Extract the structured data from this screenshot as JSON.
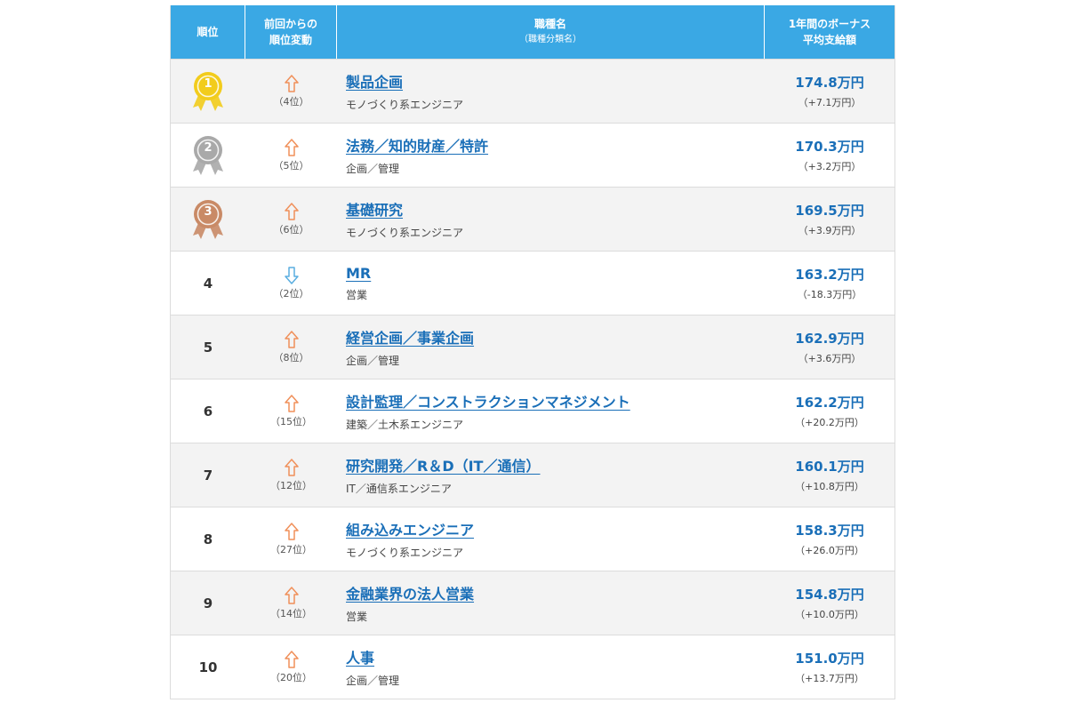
{
  "header": {
    "rank": "順位",
    "change_line1": "前回からの",
    "change_line2": "順位変動",
    "job": "職種名",
    "job_sub": "（職種分類名）",
    "bonus_line1": "1年間のボーナス",
    "bonus_line2": "平均支給額"
  },
  "colors": {
    "header_bg": "#3aa8e4",
    "link": "#1a6fb8",
    "up_arrow": "#f0905a",
    "down_arrow": "#5aaee0",
    "gold": "#f2cc1c",
    "silver": "#a9a9a9",
    "bronze": "#c98a66"
  },
  "rows": [
    {
      "rank": "1",
      "medal": "gold",
      "direction": "up",
      "prev": "（4位）",
      "title": "製品企画",
      "category": "モノづくり系エンジニア",
      "bonus": "174.8万円",
      "diff": "（+7.1万円）"
    },
    {
      "rank": "2",
      "medal": "silver",
      "direction": "up",
      "prev": "（5位）",
      "title": "法務／知的財産／特許",
      "category": "企画／管理",
      "bonus": "170.3万円",
      "diff": "（+3.2万円）"
    },
    {
      "rank": "3",
      "medal": "bronze",
      "direction": "up",
      "prev": "（6位）",
      "title": "基礎研究",
      "category": "モノづくり系エンジニア",
      "bonus": "169.5万円",
      "diff": "（+3.9万円）"
    },
    {
      "rank": "4",
      "medal": "",
      "direction": "down",
      "prev": "（2位）",
      "title": "MR",
      "category": "営業",
      "bonus": "163.2万円",
      "diff": "（-18.3万円）"
    },
    {
      "rank": "5",
      "medal": "",
      "direction": "up",
      "prev": "（8位）",
      "title": "経営企画／事業企画",
      "category": "企画／管理",
      "bonus": "162.9万円",
      "diff": "（+3.6万円）"
    },
    {
      "rank": "6",
      "medal": "",
      "direction": "up",
      "prev": "（15位）",
      "title": "設計監理／コンストラクションマネジメント",
      "category": "建築／土木系エンジニア",
      "bonus": "162.2万円",
      "diff": "（+20.2万円）"
    },
    {
      "rank": "7",
      "medal": "",
      "direction": "up",
      "prev": "（12位）",
      "title": "研究開発／R＆D（IT／通信）",
      "category": "IT／通信系エンジニア",
      "bonus": "160.1万円",
      "diff": "（+10.8万円）"
    },
    {
      "rank": "8",
      "medal": "",
      "direction": "up",
      "prev": "（27位）",
      "title": "組み込みエンジニア",
      "category": "モノづくり系エンジニア",
      "bonus": "158.3万円",
      "diff": "（+26.0万円）"
    },
    {
      "rank": "9",
      "medal": "",
      "direction": "up",
      "prev": "（14位）",
      "title": "金融業界の法人営業",
      "category": "営業",
      "bonus": "154.8万円",
      "diff": "（+10.0万円）"
    },
    {
      "rank": "10",
      "medal": "",
      "direction": "up",
      "prev": "（20位）",
      "title": "人事",
      "category": "企画／管理",
      "bonus": "151.0万円",
      "diff": "（+13.7万円）"
    }
  ]
}
